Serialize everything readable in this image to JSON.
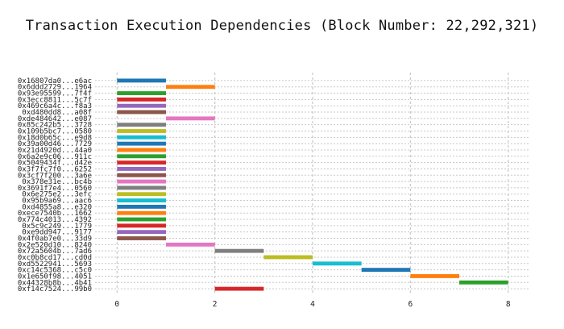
{
  "chart_data": {
    "type": "bar",
    "orientation": "horizontal-range",
    "title": "Transaction Execution Dependencies (Block Number: 22,292,321)",
    "xlabel": "",
    "ylabel": "",
    "xlim": [
      -0.45,
      8.45
    ],
    "xticks": [
      0,
      2,
      4,
      6,
      8
    ],
    "grid": true,
    "colors": [
      "#1f77b4",
      "#ff7f0e",
      "#2ca02c",
      "#d62728",
      "#9467bd",
      "#8c564b",
      "#e377c2",
      "#7f7f7f",
      "#bcbd22",
      "#17becf"
    ],
    "bars": [
      {
        "label": "0x16807da0...e6ac",
        "start": 0,
        "end": 1
      },
      {
        "label": "0x6ddd2729...1964",
        "start": 1,
        "end": 2
      },
      {
        "label": "0x93e95599...7f4f",
        "start": 0,
        "end": 1
      },
      {
        "label": "0x3ecc8811...5c7f",
        "start": 0,
        "end": 1
      },
      {
        "label": "0x469c6a4c...f8a3",
        "start": 0,
        "end": 1
      },
      {
        "label": "0xd480dd8...a08f",
        "start": 0,
        "end": 1
      },
      {
        "label": "0xde484642...e087",
        "start": 1,
        "end": 2
      },
      {
        "label": "0x85c242b5...3728",
        "start": 0,
        "end": 1
      },
      {
        "label": "0x109b5bc7...0580",
        "start": 0,
        "end": 1
      },
      {
        "label": "0x18d0b65c...e9d8",
        "start": 0,
        "end": 1
      },
      {
        "label": "0x39a00d46...7729",
        "start": 0,
        "end": 1
      },
      {
        "label": "0x21d4920d...44a0",
        "start": 0,
        "end": 1
      },
      {
        "label": "0x6a2e9c06...911c",
        "start": 0,
        "end": 1
      },
      {
        "label": "0x5049434f...d42e",
        "start": 0,
        "end": 1
      },
      {
        "label": "0x3f7fc7f0...6252",
        "start": 0,
        "end": 1
      },
      {
        "label": "0x3cf7f200...3a6e",
        "start": 0,
        "end": 1
      },
      {
        "label": "0x378e31e...bc4b",
        "start": 0,
        "end": 1
      },
      {
        "label": "0x3691f7e4...0560",
        "start": 0,
        "end": 1
      },
      {
        "label": "0x6e275e2...3efc",
        "start": 0,
        "end": 1
      },
      {
        "label": "0x95b9a69...aac6",
        "start": 0,
        "end": 1
      },
      {
        "label": "0xd4855a8...e320",
        "start": 0,
        "end": 1
      },
      {
        "label": "0xece7540b...1662",
        "start": 0,
        "end": 1
      },
      {
        "label": "0x774c4013...4392",
        "start": 0,
        "end": 1
      },
      {
        "label": "0x5c9c249...1779",
        "start": 0,
        "end": 1
      },
      {
        "label": "0xe9dd947...9177",
        "start": 0,
        "end": 1
      },
      {
        "label": "0x4f0ab7e0...33d9",
        "start": 0,
        "end": 1
      },
      {
        "label": "0x2e520d10...8240",
        "start": 1,
        "end": 2
      },
      {
        "label": "0x72a5604b...7ad6",
        "start": 2,
        "end": 3
      },
      {
        "label": "0xc0b8cd17...cd0d",
        "start": 3,
        "end": 4
      },
      {
        "label": "0xd5522941...5693",
        "start": 4,
        "end": 5
      },
      {
        "label": "0xc14c5368...c5c0",
        "start": 5,
        "end": 6
      },
      {
        "label": "0x1e650f98...4051",
        "start": 6,
        "end": 7
      },
      {
        "label": "0x44328b8b...4b41",
        "start": 7,
        "end": 8
      },
      {
        "label": "0xf14c7524...99b0",
        "start": 2,
        "end": 3
      }
    ]
  }
}
